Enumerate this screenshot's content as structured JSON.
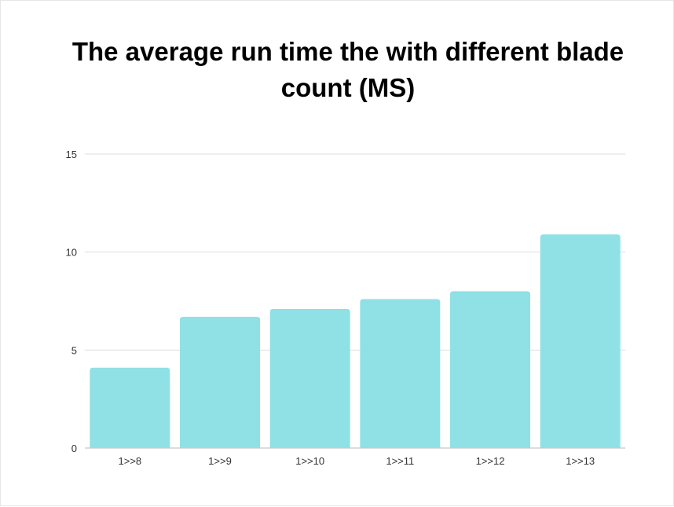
{
  "chart_data": {
    "type": "bar",
    "title": "The average run time the with different blade count (MS)",
    "categories": [
      "1>>8",
      "1>>9",
      "1>>10",
      "1>>11",
      "1>>12",
      "1>>13"
    ],
    "series": [
      {
        "values": [
          4.1,
          6.7,
          7.1,
          7.6,
          8.0,
          10.9
        ]
      }
    ],
    "ylim": [
      0,
      15
    ],
    "yticks": [
      "0",
      "5",
      "10",
      "15"
    ],
    "grid": true,
    "bar_color": "#8fe1e6",
    "grid_color": "#dedede",
    "baseline_color": "#b8b8b8"
  }
}
